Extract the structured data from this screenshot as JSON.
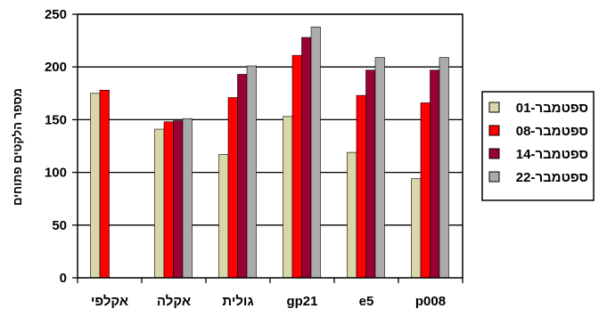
{
  "chart_data": {
    "type": "bar",
    "categories": [
      "אקלפי",
      "אקלה",
      "גולית",
      "gp21",
      "e5",
      "p008"
    ],
    "series": [
      {
        "name": "01-ספטמבר",
        "color": "#D9D6A9",
        "values": [
          175,
          141,
          117,
          153,
          119,
          94
        ]
      },
      {
        "name": "08-ספטמבר",
        "color": "#FF0000",
        "values": [
          178,
          148,
          171,
          211,
          173,
          166
        ]
      },
      {
        "name": "14-ספטמבר",
        "color": "#990033",
        "values": [
          null,
          149,
          193,
          228,
          197,
          197
        ]
      },
      {
        "name": "22-ספטמבר",
        "color": "#ABABAB",
        "values": [
          null,
          151,
          201,
          238,
          209,
          209
        ]
      }
    ],
    "ylabel": "מספר הלקטים פתוחים",
    "xlabel": "",
    "ylim": [
      0,
      250
    ],
    "yticks": [
      0,
      50,
      100,
      150,
      200,
      250
    ],
    "grid": true,
    "legend_position": "right"
  }
}
